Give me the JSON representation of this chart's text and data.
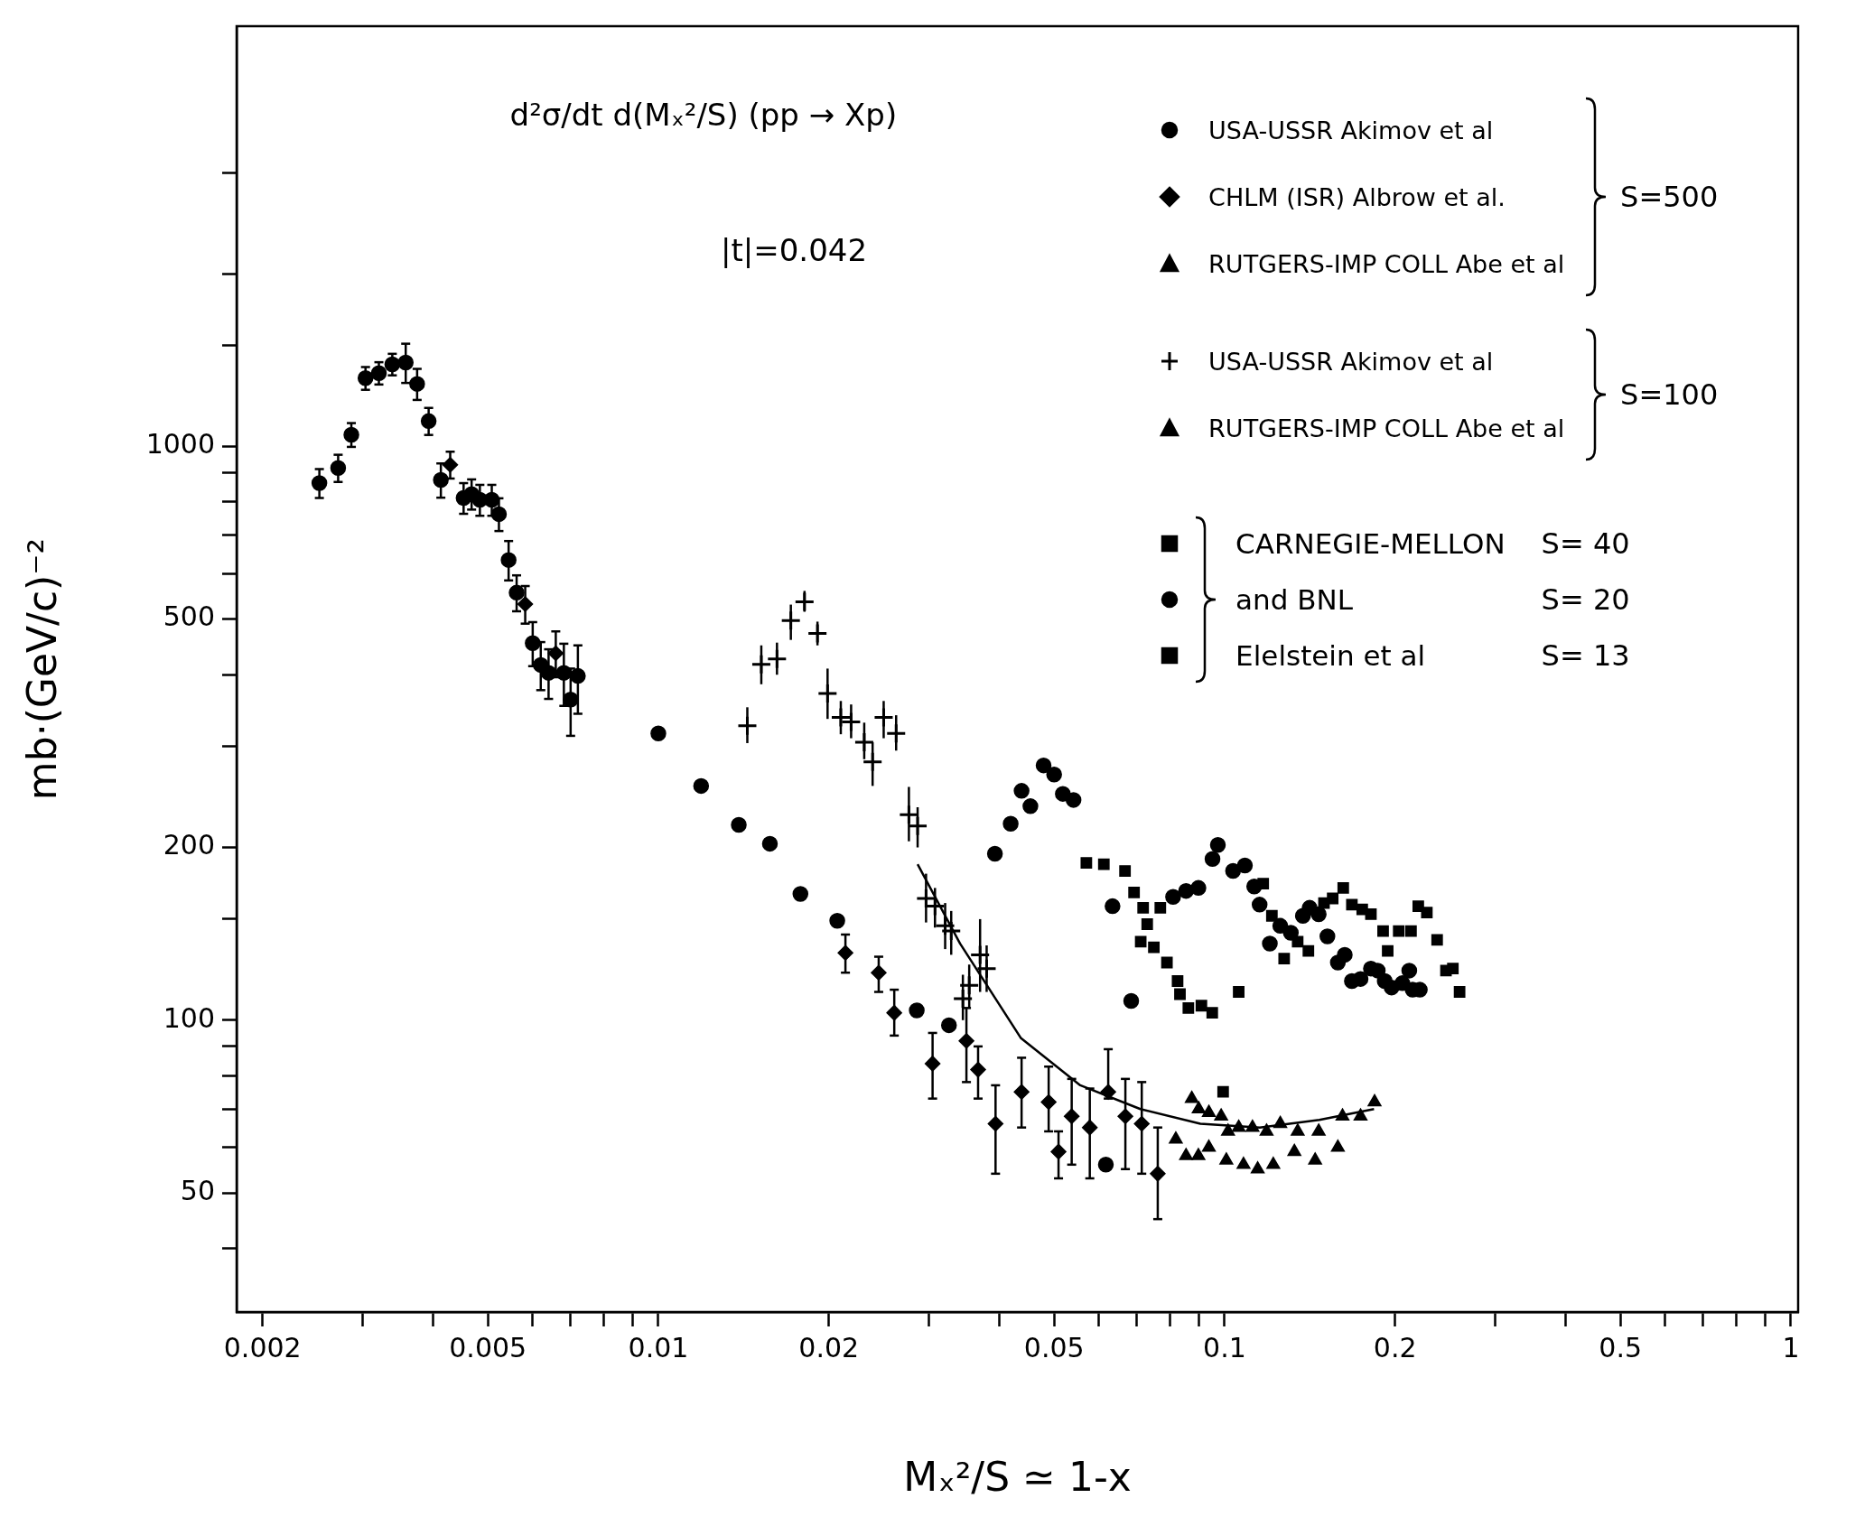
{
  "chart_data": {
    "type": "scatter",
    "xlabel": "Mₓ²/S ≃ 1-x",
    "ylabel": "mb·(GeV/c)⁻²",
    "log": "xy",
    "legend": "top right",
    "xlim": [
      0.0018,
      1.03
    ],
    "xticks": [
      0.002,
      {
        "value": 0.003,
        "label": null
      },
      {
        "value": 0.004,
        "label": null
      },
      0.005,
      {
        "value": 0.006,
        "label": null
      },
      {
        "value": 0.007,
        "label": null
      },
      {
        "value": 0.008,
        "label": null
      },
      {
        "value": 0.009,
        "label": null
      },
      0.01,
      0.02,
      {
        "value": 0.03,
        "label": null
      },
      {
        "value": 0.04,
        "label": null
      },
      0.05,
      {
        "value": 0.06,
        "label": null
      },
      {
        "value": 0.07,
        "label": null
      },
      {
        "value": 0.08,
        "label": null
      },
      {
        "value": 0.09,
        "label": null
      },
      0.1,
      0.2,
      {
        "value": 0.3,
        "label": null
      },
      {
        "value": 0.4,
        "label": null
      },
      0.5,
      {
        "value": 0.6,
        "label": null
      },
      {
        "value": 0.7,
        "label": null
      },
      {
        "value": 0.8,
        "label": null
      },
      {
        "value": 0.9,
        "label": null
      },
      1
    ],
    "ylim": [
      31,
      5400
    ],
    "yticks": [
      {
        "value": 40,
        "label": null
      },
      50,
      {
        "value": 60,
        "label": null
      },
      {
        "value": 70,
        "label": null
      },
      {
        "value": 80,
        "label": null
      },
      {
        "value": 90,
        "label": null
      },
      100,
      {
        "value": 150,
        "label": null
      },
      200,
      {
        "value": 300,
        "label": null
      },
      {
        "value": 400,
        "label": null
      },
      500,
      {
        "value": 600,
        "label": null
      },
      {
        "value": 700,
        "label": null
      },
      {
        "value": 800,
        "label": null
      },
      {
        "value": 900,
        "label": null
      },
      1000,
      {
        "value": 1500,
        "label": null
      },
      {
        "value": 2000,
        "label": null
      },
      {
        "value": 3000,
        "label": null
      }
    ],
    "annotations": [
      "d²σ/dt d(Mₓ²/S) (pp → Xp)",
      "|t|=0.042",
      "S=500",
      "S=100",
      "S= 40",
      "S= 20",
      "S= 13"
    ],
    "series": [
      {
        "name": "USA-USSR Akimov et al",
        "color": "#000000",
        "marker": "circle",
        "x": [
          0.00252,
          0.00272,
          0.00287,
          0.00304,
          0.00321,
          0.00339,
          0.00358,
          0.00375,
          0.00393,
          0.00413,
          0.00453,
          0.00468,
          0.00484,
          0.00508,
          0.00523,
          0.00544,
          0.00562,
          0.006,
          0.0062,
          0.0064,
          0.00681,
          0.007,
          0.00721,
          0.01,
          0.0119,
          0.01387,
          0.01574,
          0.01782,
          0.0207,
          0.0286,
          0.0326
        ],
        "values": [
          863,
          917,
          1048,
          1315,
          1342,
          1390,
          1400,
          1285,
          1107,
          874,
          813,
          826,
          807,
          807,
          762,
          634,
          556,
          454,
          416,
          403,
          403,
          362,
          398,
          316,
          256,
          219,
          203,
          166,
          149,
          104,
          98
        ],
        "errors": [
          50,
          50,
          50,
          60,
          60,
          60,
          110,
          80,
          60,
          60,
          50,
          50,
          50,
          50,
          50,
          50,
          40,
          40,
          40,
          40,
          50,
          [
            313,
            410
          ],
          [
            342,
            450
          ],
          null,
          null,
          null,
          null,
          null,
          null,
          null,
          null
        ]
      },
      {
        "name": "CHLM (ISR) Albrow et al.",
        "color": "#000000",
        "marker": "diamond",
        "x": [
          0.00429,
          0.00582,
          0.00659,
          0.0214,
          0.0245,
          0.0261,
          0.0305,
          0.035,
          0.0367,
          0.0394,
          0.0438,
          0.0489,
          0.0509,
          0.0537,
          0.0578,
          0.0623,
          0.0668,
          0.0714,
          0.0762
        ],
        "values": [
          929,
          531,
          436,
          131,
          121,
          103,
          84,
          92,
          82,
          66,
          75,
          72,
          59,
          68,
          65,
          75,
          68,
          66,
          54
        ],
        "errors": [
          50,
          40,
          40,
          [
            121,
            141
          ],
          [
            112,
            129
          ],
          [
            94,
            113
          ],
          [
            73,
            95
          ],
          [
            78,
            105
          ],
          [
            73,
            90
          ],
          [
            54,
            77
          ],
          [
            65,
            86
          ],
          [
            64,
            83
          ],
          [
            53,
            64
          ],
          [
            56,
            79
          ],
          [
            53,
            76
          ],
          [
            73,
            89
          ],
          [
            55,
            79
          ],
          [
            54,
            78
          ],
          [
            45,
            65
          ]
        ]
      },
      {
        "name": "RUTGERS-IMP COLL Abe et al",
        "color": "#000000",
        "marker": "triangle",
        "x": [
          0.082,
          0.0855,
          0.0899,
          0.0938,
          0.1007,
          0.108,
          0.1144,
          0.1219,
          0.1328,
          0.1445,
          0.1585,
          0.1738
        ],
        "values": [
          62,
          58,
          58,
          60,
          57,
          56,
          55,
          56,
          59,
          57,
          60,
          68
        ]
      },
      {
        "name": "USA-USSR Akimov et al",
        "color": "#000000",
        "marker": "cross",
        "x": [
          0.01436,
          0.0152,
          0.0162,
          0.01714,
          0.01812,
          0.0191,
          0.0199,
          0.021,
          0.0219,
          0.0231,
          0.0239,
          0.025,
          0.0263,
          0.0277,
          0.0287,
          0.0297,
          0.0308,
          0.0321,
          0.0329,
          0.0345,
          0.0354,
          0.037,
          0.038
        ],
        "values": [
          326,
          417,
          426,
          497,
          536,
          472,
          371,
          337,
          331,
          305,
          282,
          337,
          316,
          228,
          218,
          163,
          158,
          146,
          143,
          109,
          115,
          130,
          123
        ],
        "errors": [
          [
            304,
            351
          ],
          [
            385,
            450
          ],
          [
            400,
            455
          ],
          [
            460,
            530
          ],
          [
            515,
            560
          ],
          [
            450,
            495
          ],
          [
            335,
            410
          ],
          [
            315,
            360
          ],
          [
            310,
            355
          ],
          [
            285,
            330
          ],
          [
            256,
            305
          ],
          [
            310,
            360
          ],
          [
            295,
            340
          ],
          [
            205,
            255
          ],
          [
            200,
            235
          ],
          [
            148,
            180
          ],
          [
            145,
            170
          ],
          [
            133,
            160
          ],
          [
            130,
            155
          ],
          [
            100,
            120
          ],
          [
            105,
            125
          ],
          [
            112,
            150
          ],
          [
            112,
            135
          ]
        ]
      },
      {
        "name": "RUTGERS-IMP COLL Abe et al",
        "color": "#000000",
        "marker": "triangle",
        "x": [
          0.0875,
          0.09,
          0.0938,
          0.0986,
          0.1014,
          0.1059,
          0.112,
          0.1186,
          0.1254,
          0.1346,
          0.1466,
          0.1615,
          0.184
        ],
        "values": [
          73,
          70,
          69,
          68,
          64,
          65,
          65,
          64,
          66,
          64,
          64,
          68,
          72
        ]
      },
      {
        "name": "CARNEGIE-MELLON",
        "color": "#000000",
        "marker": "square",
        "x": [
          0.057,
          0.0612,
          0.0667,
          0.0692,
          0.0718,
          0.073,
          0.0711,
          0.075,
          0.077,
          0.0791,
          0.0826,
          0.0834,
          0.0863,
          0.091,
          0.0951
        ],
        "values": [
          188,
          187,
          182,
          167,
          157,
          147,
          137,
          134,
          157,
          126,
          117,
          111,
          105,
          106,
          103
        ]
      },
      {
        "name": "and BNL",
        "color": "#000000",
        "marker": "circle",
        "x": [
          0.0393,
          0.0419,
          0.0438,
          0.0454,
          0.0479,
          0.05,
          0.0518,
          0.0541,
          0.0617,
          0.0634,
          0.0684,
          0.0811,
          0.0855,
          0.0899,
          0.0952,
          0.0973,
          0.1035,
          0.1086,
          0.1128,
          0.1153,
          0.1202,
          0.1254,
          0.1309,
          0.1375,
          0.1413,
          0.1466,
          0.1519,
          0.1585,
          0.163,
          0.1678,
          0.1738,
          0.1813,
          0.1864,
          0.1918,
          0.1972,
          0.206,
          0.2119,
          0.2148,
          0.2212
        ],
        "values": [
          195,
          220,
          251,
          236,
          278,
          268,
          248,
          242,
          56,
          158,
          108,
          164,
          168,
          170,
          191,
          202,
          182,
          186,
          171,
          159,
          136,
          146,
          142,
          152,
          157,
          153,
          140,
          126,
          130,
          117,
          118,
          123,
          122,
          117,
          114,
          116,
          122,
          113,
          113
        ]
      },
      {
        "name": "Elelstein et al",
        "color": "#000000",
        "marker": "square",
        "x": [
          0.0994,
          0.1059,
          0.117,
          0.1212,
          0.1274,
          0.1346,
          0.1406,
          0.1498,
          0.1552,
          0.162,
          0.1678,
          0.175,
          0.1813,
          0.1905,
          0.1941,
          0.203,
          0.2134,
          0.2198,
          0.2276,
          0.2373,
          0.246,
          0.253,
          0.26
        ],
        "values": [
          75,
          112,
          173,
          152,
          128,
          137,
          132,
          160,
          163,
          170,
          159,
          156,
          153,
          143,
          132,
          143,
          143,
          158,
          154,
          138,
          122,
          123,
          112
        ]
      },
      {
        "type": "line",
        "color": "#000000",
        "x": [
          0.0287,
          0.0341,
          0.0437,
          0.0556,
          0.071,
          0.0906,
          0.1154,
          0.147,
          0.1836
        ],
        "values": [
          187,
          136,
          93,
          77,
          70,
          66,
          65,
          67,
          70
        ]
      }
    ]
  }
}
